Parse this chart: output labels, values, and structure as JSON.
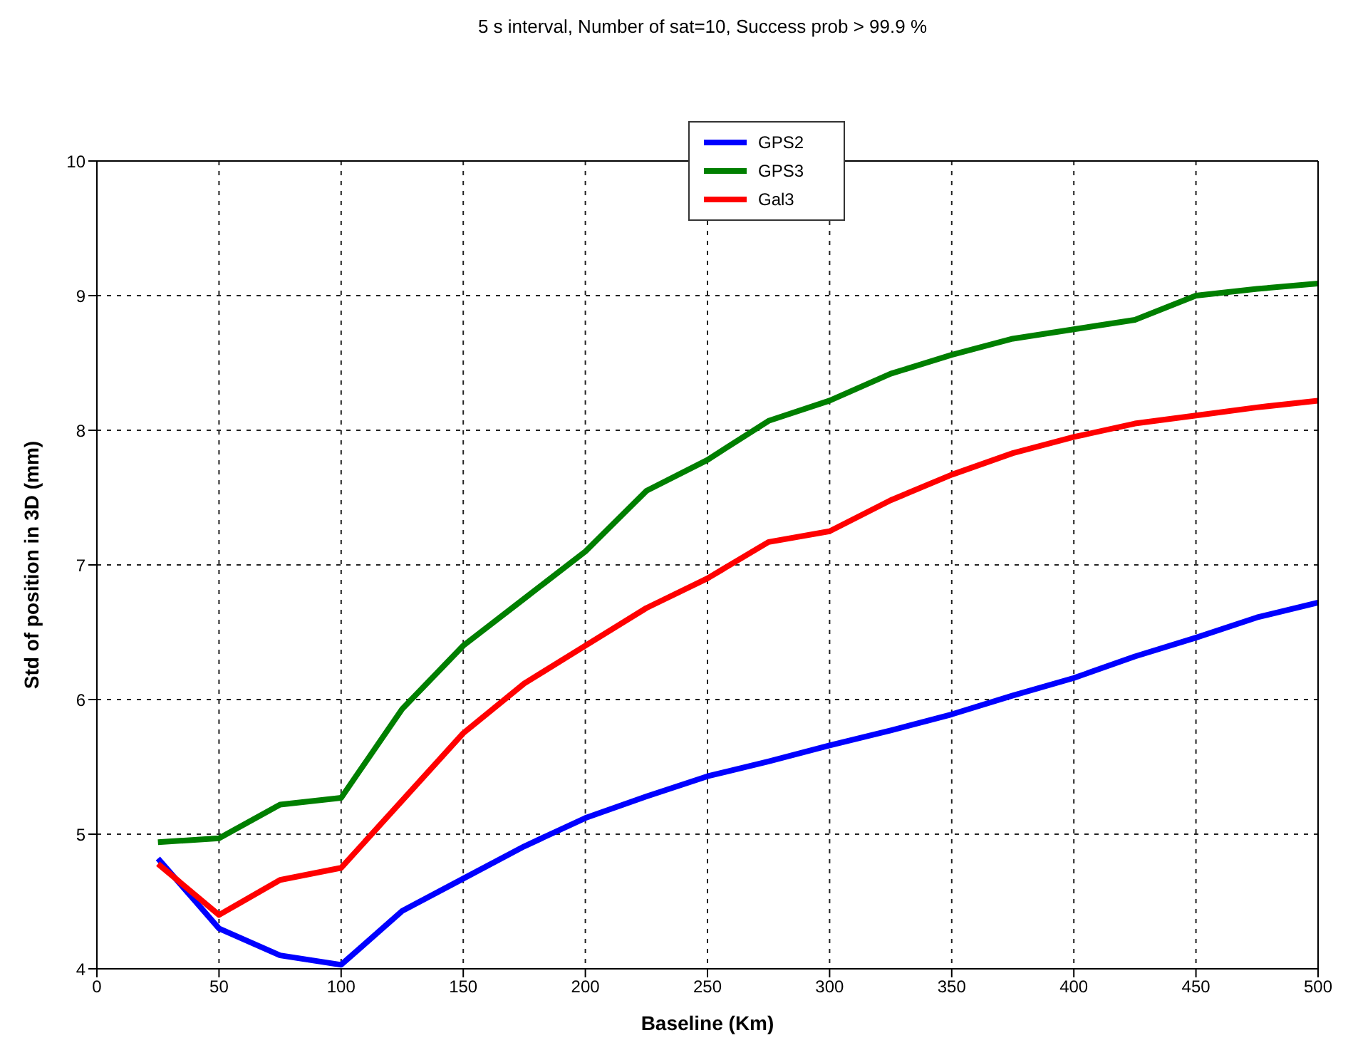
{
  "chart_data": {
    "type": "line",
    "title": "5 s interval, Number of sat=10, Success prob > 99.9 %",
    "xlabel": "Baseline (Km)",
    "ylabel": "Std of position in 3D (mm)",
    "x": [
      25,
      50,
      75,
      100,
      125,
      150,
      175,
      200,
      225,
      250,
      275,
      300,
      325,
      350,
      375,
      400,
      425,
      450,
      475,
      500
    ],
    "series": [
      {
        "name": "GPS2",
        "color": "#0000ff",
        "values": [
          4.82,
          4.3,
          4.1,
          4.03,
          4.43,
          4.67,
          4.91,
          5.12,
          5.28,
          5.43,
          5.54,
          5.66,
          5.77,
          5.89,
          6.03,
          6.16,
          6.32,
          6.46,
          6.61,
          6.72
        ]
      },
      {
        "name": "GPS3",
        "color": "#007f00",
        "values": [
          4.94,
          4.97,
          5.22,
          5.27,
          5.93,
          6.4,
          6.75,
          7.1,
          7.55,
          7.78,
          8.07,
          8.22,
          8.42,
          8.56,
          8.68,
          8.75,
          8.82,
          9.0,
          9.05,
          9.09
        ]
      },
      {
        "name": "Gal3",
        "color": "#ff0000",
        "values": [
          4.78,
          4.4,
          4.66,
          4.75,
          5.25,
          5.75,
          6.12,
          6.4,
          6.68,
          6.9,
          7.17,
          7.25,
          7.48,
          7.67,
          7.83,
          7.95,
          8.05,
          8.11,
          8.17,
          8.22
        ]
      }
    ],
    "xlim": [
      0,
      500
    ],
    "xticks": [
      0,
      50,
      100,
      150,
      200,
      250,
      300,
      350,
      400,
      450,
      500
    ],
    "ylim": [
      4,
      10
    ],
    "yticks": [
      4,
      5,
      6,
      7,
      8,
      9,
      10
    ],
    "grid": true,
    "legend": "top",
    "marker": "none",
    "line_style": "solid"
  }
}
